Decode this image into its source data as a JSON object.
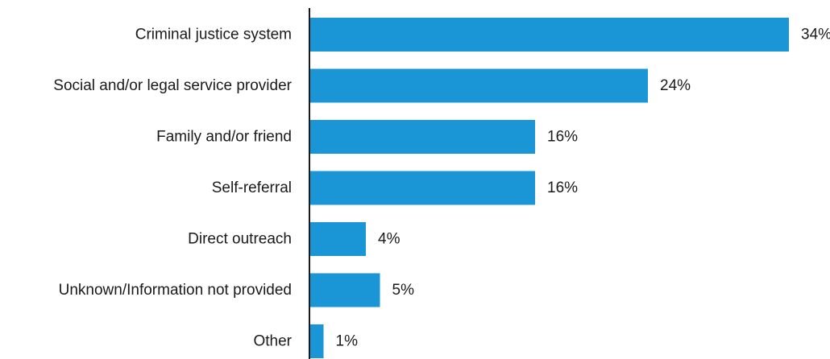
{
  "chart_data": {
    "type": "bar",
    "orientation": "horizontal",
    "categories": [
      "Criminal justice system",
      "Social and/or legal service provider",
      "Family and/or friend",
      "Self-referral",
      "Direct outreach",
      "Unknown/Information not provided",
      "Other"
    ],
    "values": [
      34,
      24,
      16,
      16,
      4,
      5,
      1
    ],
    "value_labels": [
      "34%",
      "24%",
      "16%",
      "16%",
      "4%",
      "5%",
      "1%"
    ],
    "unit": "%",
    "title": "",
    "xlabel": "",
    "ylabel": "",
    "grid": false,
    "legend": "none",
    "bar_color": "#1a96d6",
    "axis_color": "#1a1a1a",
    "text_color": "#1a1a1a"
  }
}
